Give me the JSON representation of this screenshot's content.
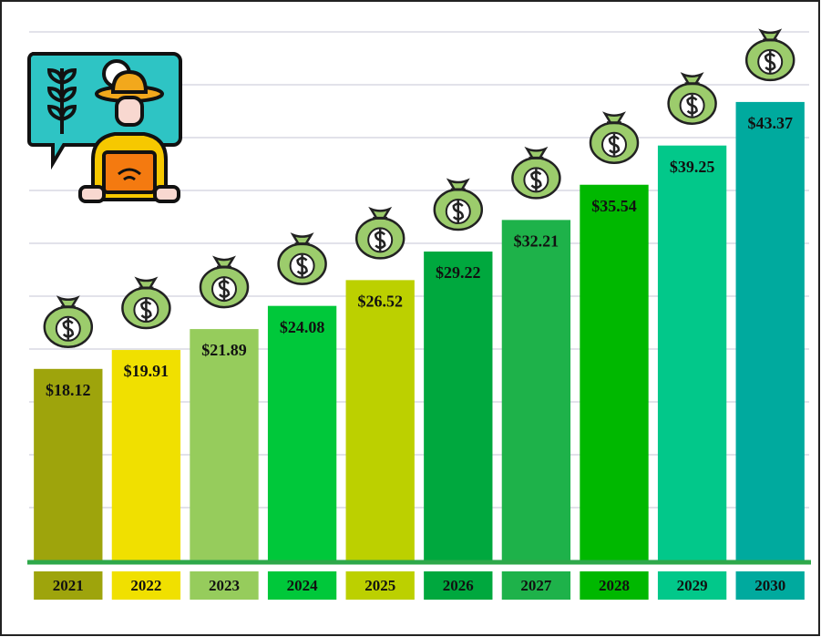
{
  "chart_data": {
    "type": "bar",
    "categories": [
      "2021",
      "2022",
      "2023",
      "2024",
      "2025",
      "2026",
      "2027",
      "2028",
      "2029",
      "2030"
    ],
    "values": [
      18.12,
      19.91,
      21.89,
      24.08,
      26.52,
      29.22,
      32.21,
      35.54,
      39.25,
      43.37
    ],
    "value_labels": [
      "$18.12",
      "$19.91",
      "$21.89",
      "$24.08",
      "$26.52",
      "$29.22",
      "$32.21",
      "$35.54",
      "$39.25",
      "$43.37"
    ],
    "colors": [
      "#9ea40c",
      "#f0e000",
      "#96cc5c",
      "#00c83a",
      "#bcd000",
      "#00a83e",
      "#1eb24a",
      "#00b800",
      "#02c88a",
      "#00aa9e"
    ],
    "ylim": [
      0,
      50
    ],
    "yticks": [
      0,
      5,
      10,
      15,
      20,
      25,
      30,
      35,
      40,
      45,
      50
    ],
    "grid": true
  }
}
